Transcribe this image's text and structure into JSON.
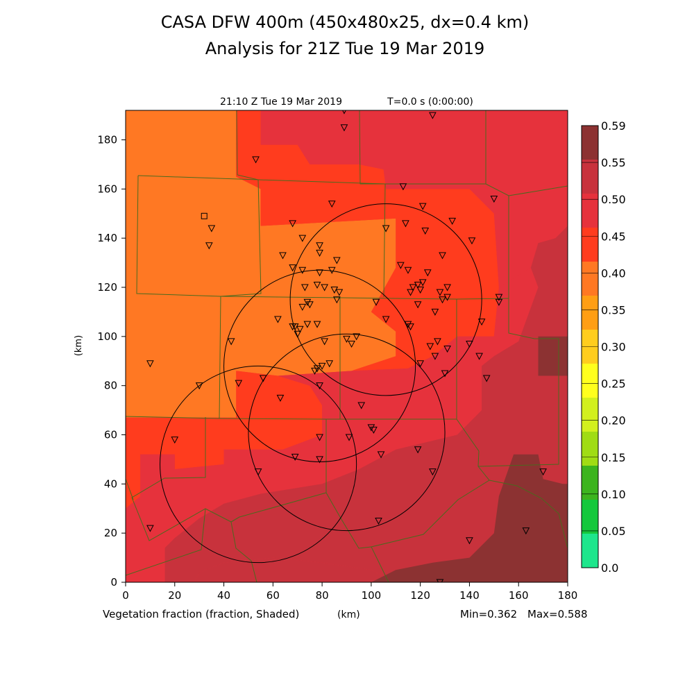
{
  "header": {
    "title": "CASA DFW 400m (450x480x25, dx=0.4 km)",
    "subtitle": "Analysis for 21Z Tue 19 Mar 2019",
    "timestamp": "21:10 Z Tue 19 Mar 2019",
    "time_offset": "T=0.0 s (0:00:00)"
  },
  "footer": {
    "field_label": "Vegetation fraction (fraction, Shaded)",
    "x_unit": "(km)",
    "min_label": "Min=0.362",
    "max_label": "Max=0.588"
  },
  "axes": {
    "ylabel": "(km)",
    "x_ticks": [
      0,
      20,
      40,
      60,
      80,
      100,
      120,
      140,
      160,
      180
    ],
    "y_ticks": [
      0,
      20,
      40,
      60,
      80,
      100,
      120,
      140,
      160,
      180
    ],
    "xlim": [
      0,
      180
    ],
    "ylim": [
      0,
      192
    ]
  },
  "colorbar": {
    "levels": [
      "0.0",
      "0.05",
      "0.10",
      "0.15",
      "0.20",
      "0.25",
      "0.30",
      "0.35",
      "0.40",
      "0.45",
      "0.50",
      "0.55",
      "0.59"
    ],
    "colors": [
      "#1ee68c",
      "#14c83c",
      "#3cb41e",
      "#a0dc14",
      "#d2f01e",
      "#ffff1e",
      "#ffcd1e",
      "#ff9e14",
      "#ff7823",
      "#ff3c1e",
      "#e6323c",
      "#c8323c",
      "#8c3232"
    ]
  },
  "chart_data": {
    "type": "heatmap",
    "field": "Vegetation fraction",
    "min": 0.362,
    "max": 0.588,
    "regions": [
      {
        "level": "0.35-0.40",
        "color": "#ff7823",
        "polygon": [
          [
            0,
            192
          ],
          [
            45,
            192
          ],
          [
            45,
            165
          ],
          [
            55,
            160
          ],
          [
            55,
            145
          ],
          [
            110,
            148
          ],
          [
            110,
            128
          ],
          [
            100,
            110
          ],
          [
            110,
            102
          ],
          [
            110,
            92
          ],
          [
            92,
            86
          ],
          [
            62,
            84
          ],
          [
            45,
            86
          ],
          [
            45,
            67
          ],
          [
            0,
            67
          ]
        ]
      },
      {
        "level": "0.40-0.45",
        "color": "#ff3c1e",
        "polygon": [
          [
            45,
            192
          ],
          [
            55,
            192
          ],
          [
            55,
            178
          ],
          [
            70,
            178
          ],
          [
            75,
            170
          ],
          [
            95,
            170
          ],
          [
            105,
            168
          ],
          [
            106,
            160
          ],
          [
            140,
            160
          ],
          [
            150,
            150
          ],
          [
            152,
            120
          ],
          [
            150,
            100
          ],
          [
            135,
            100
          ],
          [
            125,
            92
          ],
          [
            115,
            87
          ],
          [
            92,
            86
          ],
          [
            110,
            92
          ],
          [
            110,
            102
          ],
          [
            100,
            110
          ],
          [
            110,
            128
          ],
          [
            110,
            148
          ],
          [
            55,
            145
          ],
          [
            55,
            160
          ],
          [
            45,
            165
          ]
        ]
      },
      {
        "level": "0.40-0.45",
        "color": "#ff3c1e",
        "polygon": [
          [
            0,
            67
          ],
          [
            45,
            67
          ],
          [
            45,
            86
          ],
          [
            62,
            84
          ],
          [
            75,
            80
          ],
          [
            80,
            72
          ],
          [
            80,
            60
          ],
          [
            64,
            54
          ],
          [
            40,
            54
          ],
          [
            40,
            48
          ],
          [
            20,
            46
          ],
          [
            20,
            52
          ],
          [
            6,
            52
          ],
          [
            6,
            35
          ],
          [
            0,
            30
          ]
        ]
      },
      {
        "level": "0.45-0.50",
        "color": "#e6323c",
        "polygon": [
          [
            55,
            192
          ],
          [
            175,
            192
          ],
          [
            180,
            172
          ],
          [
            180,
            162
          ],
          [
            160,
            160
          ],
          [
            140,
            160
          ],
          [
            106,
            160
          ],
          [
            105,
            168
          ],
          [
            95,
            170
          ],
          [
            75,
            170
          ],
          [
            70,
            178
          ],
          [
            55,
            178
          ]
        ]
      },
      {
        "level": "0.45-0.50",
        "color": "#e6323c",
        "polygon": [
          [
            150,
            150
          ],
          [
            160,
            160
          ],
          [
            180,
            160
          ],
          [
            180,
            145
          ],
          [
            175,
            140
          ],
          [
            168,
            138
          ],
          [
            165,
            128
          ],
          [
            152,
            120
          ]
        ]
      },
      {
        "level": "0.45-0.50",
        "color": "#e6323c",
        "polygon": [
          [
            0,
            30
          ],
          [
            6,
            35
          ],
          [
            6,
            52
          ],
          [
            20,
            52
          ],
          [
            20,
            46
          ],
          [
            40,
            48
          ],
          [
            40,
            54
          ],
          [
            64,
            54
          ],
          [
            80,
            60
          ],
          [
            80,
            72
          ],
          [
            75,
            80
          ],
          [
            62,
            84
          ],
          [
            92,
            86
          ],
          [
            115,
            87
          ],
          [
            125,
            92
          ],
          [
            135,
            100
          ],
          [
            150,
            100
          ],
          [
            152,
            120
          ],
          [
            165,
            128
          ],
          [
            168,
            120
          ],
          [
            160,
            98
          ],
          [
            150,
            92
          ],
          [
            145,
            88
          ],
          [
            145,
            70
          ],
          [
            135,
            60
          ],
          [
            110,
            54
          ],
          [
            95,
            46
          ],
          [
            80,
            40
          ],
          [
            55,
            36
          ],
          [
            40,
            32
          ],
          [
            30,
            26
          ],
          [
            20,
            18
          ],
          [
            16,
            14
          ],
          [
            16,
            0
          ],
          [
            0,
            0
          ]
        ]
      },
      {
        "level": "0.50-0.55",
        "color": "#c8323c",
        "polygon": [
          [
            16,
            0
          ],
          [
            16,
            14
          ],
          [
            20,
            18
          ],
          [
            30,
            26
          ],
          [
            40,
            32
          ],
          [
            55,
            36
          ],
          [
            80,
            40
          ],
          [
            95,
            46
          ],
          [
            110,
            54
          ],
          [
            135,
            60
          ],
          [
            145,
            70
          ],
          [
            145,
            88
          ],
          [
            150,
            92
          ],
          [
            160,
            98
          ],
          [
            168,
            120
          ],
          [
            165,
            128
          ],
          [
            168,
            138
          ],
          [
            175,
            140
          ],
          [
            180,
            145
          ],
          [
            180,
            0
          ],
          [
            110,
            0
          ],
          [
            100,
            5
          ],
          [
            80,
            8
          ],
          [
            60,
            10
          ],
          [
            40,
            8
          ],
          [
            30,
            4
          ],
          [
            28,
            0
          ]
        ]
      },
      {
        "level": "0.50-0.55",
        "color": "#c8323c",
        "polygon": [
          [
            28,
            0
          ],
          [
            30,
            4
          ],
          [
            40,
            8
          ],
          [
            60,
            10
          ],
          [
            80,
            8
          ],
          [
            100,
            5
          ],
          [
            110,
            0
          ]
        ]
      },
      {
        "level": "0.55-0.59",
        "color": "#8c3232",
        "polygon": [
          [
            100,
            0
          ],
          [
            110,
            5
          ],
          [
            125,
            8
          ],
          [
            140,
            10
          ],
          [
            150,
            20
          ],
          [
            152,
            35
          ],
          [
            158,
            52
          ],
          [
            168,
            52
          ],
          [
            170,
            42
          ],
          [
            178,
            40
          ],
          [
            180,
            40
          ],
          [
            180,
            0
          ]
        ]
      },
      {
        "level": "0.55-0.59",
        "color": "#8c3232",
        "polygon": [
          [
            168,
            84
          ],
          [
            180,
            84
          ],
          [
            180,
            100
          ],
          [
            168,
            100
          ]
        ]
      }
    ],
    "radar_rings": [
      {
        "cx": 106,
        "cy": 115,
        "r": 39
      },
      {
        "cx": 79,
        "cy": 88,
        "r": 39
      },
      {
        "cx": 54,
        "cy": 48,
        "r": 40
      },
      {
        "cx": 90,
        "cy": 61,
        "r": 40
      }
    ],
    "station_markers": [
      [
        89,
        192
      ],
      [
        125,
        190
      ],
      [
        89,
        185
      ],
      [
        53,
        172
      ],
      [
        113,
        161
      ],
      [
        150,
        156
      ],
      [
        121,
        153
      ],
      [
        84,
        154
      ],
      [
        35,
        144
      ],
      [
        68,
        146
      ],
      [
        133,
        147
      ],
      [
        114,
        146
      ],
      [
        106,
        144
      ],
      [
        122,
        143
      ],
      [
        141,
        139
      ],
      [
        72,
        140
      ],
      [
        79,
        137
      ],
      [
        79,
        134
      ],
      [
        34,
        137
      ],
      [
        86,
        131
      ],
      [
        64,
        133
      ],
      [
        129,
        133
      ],
      [
        68,
        128
      ],
      [
        72,
        127
      ],
      [
        84,
        127
      ],
      [
        79,
        126
      ],
      [
        112,
        129
      ],
      [
        115,
        127
      ],
      [
        123,
        126
      ],
      [
        78,
        121
      ],
      [
        73,
        120
      ],
      [
        81,
        120
      ],
      [
        85,
        119
      ],
      [
        87,
        118
      ],
      [
        117,
        120
      ],
      [
        119,
        121
      ],
      [
        121,
        122
      ],
      [
        120,
        119
      ],
      [
        116,
        118
      ],
      [
        128,
        118
      ],
      [
        131,
        120
      ],
      [
        129,
        115
      ],
      [
        131,
        116
      ],
      [
        74,
        114
      ],
      [
        75,
        113
      ],
      [
        86,
        115
      ],
      [
        72,
        112
      ],
      [
        102,
        114
      ],
      [
        119,
        113
      ],
      [
        152,
        114
      ],
      [
        152,
        116
      ],
      [
        126,
        110
      ],
      [
        74,
        105
      ],
      [
        68,
        104
      ],
      [
        62,
        107
      ],
      [
        69,
        104
      ],
      [
        70,
        101
      ],
      [
        71,
        103
      ],
      [
        78,
        105
      ],
      [
        106,
        107
      ],
      [
        115,
        105
      ],
      [
        145,
        106
      ],
      [
        43,
        98
      ],
      [
        94,
        100
      ],
      [
        81,
        98
      ],
      [
        92,
        97
      ],
      [
        90,
        99
      ],
      [
        116,
        104
      ],
      [
        140,
        97
      ],
      [
        127,
        98
      ],
      [
        124,
        96
      ],
      [
        120,
        89
      ],
      [
        131,
        95
      ],
      [
        126,
        92
      ],
      [
        144,
        92
      ],
      [
        130,
        85
      ],
      [
        77,
        86
      ],
      [
        78,
        87
      ],
      [
        80,
        88
      ],
      [
        83,
        89
      ],
      [
        10,
        89
      ],
      [
        56,
        83
      ],
      [
        46,
        81
      ],
      [
        30,
        80
      ],
      [
        147,
        83
      ],
      [
        79,
        80
      ],
      [
        63,
        75
      ],
      [
        96,
        72
      ],
      [
        100,
        63
      ],
      [
        101,
        62
      ],
      [
        79,
        59
      ],
      [
        91,
        59
      ],
      [
        20,
        58
      ],
      [
        119,
        54
      ],
      [
        104,
        52
      ],
      [
        69,
        51
      ],
      [
        79,
        50
      ],
      [
        125,
        45
      ],
      [
        54,
        45
      ],
      [
        170,
        45
      ],
      [
        103,
        25
      ],
      [
        10,
        22
      ],
      [
        140,
        17
      ],
      [
        163,
        21
      ],
      [
        128,
        0
      ]
    ],
    "square_markers": [
      [
        32,
        149
      ]
    ]
  }
}
